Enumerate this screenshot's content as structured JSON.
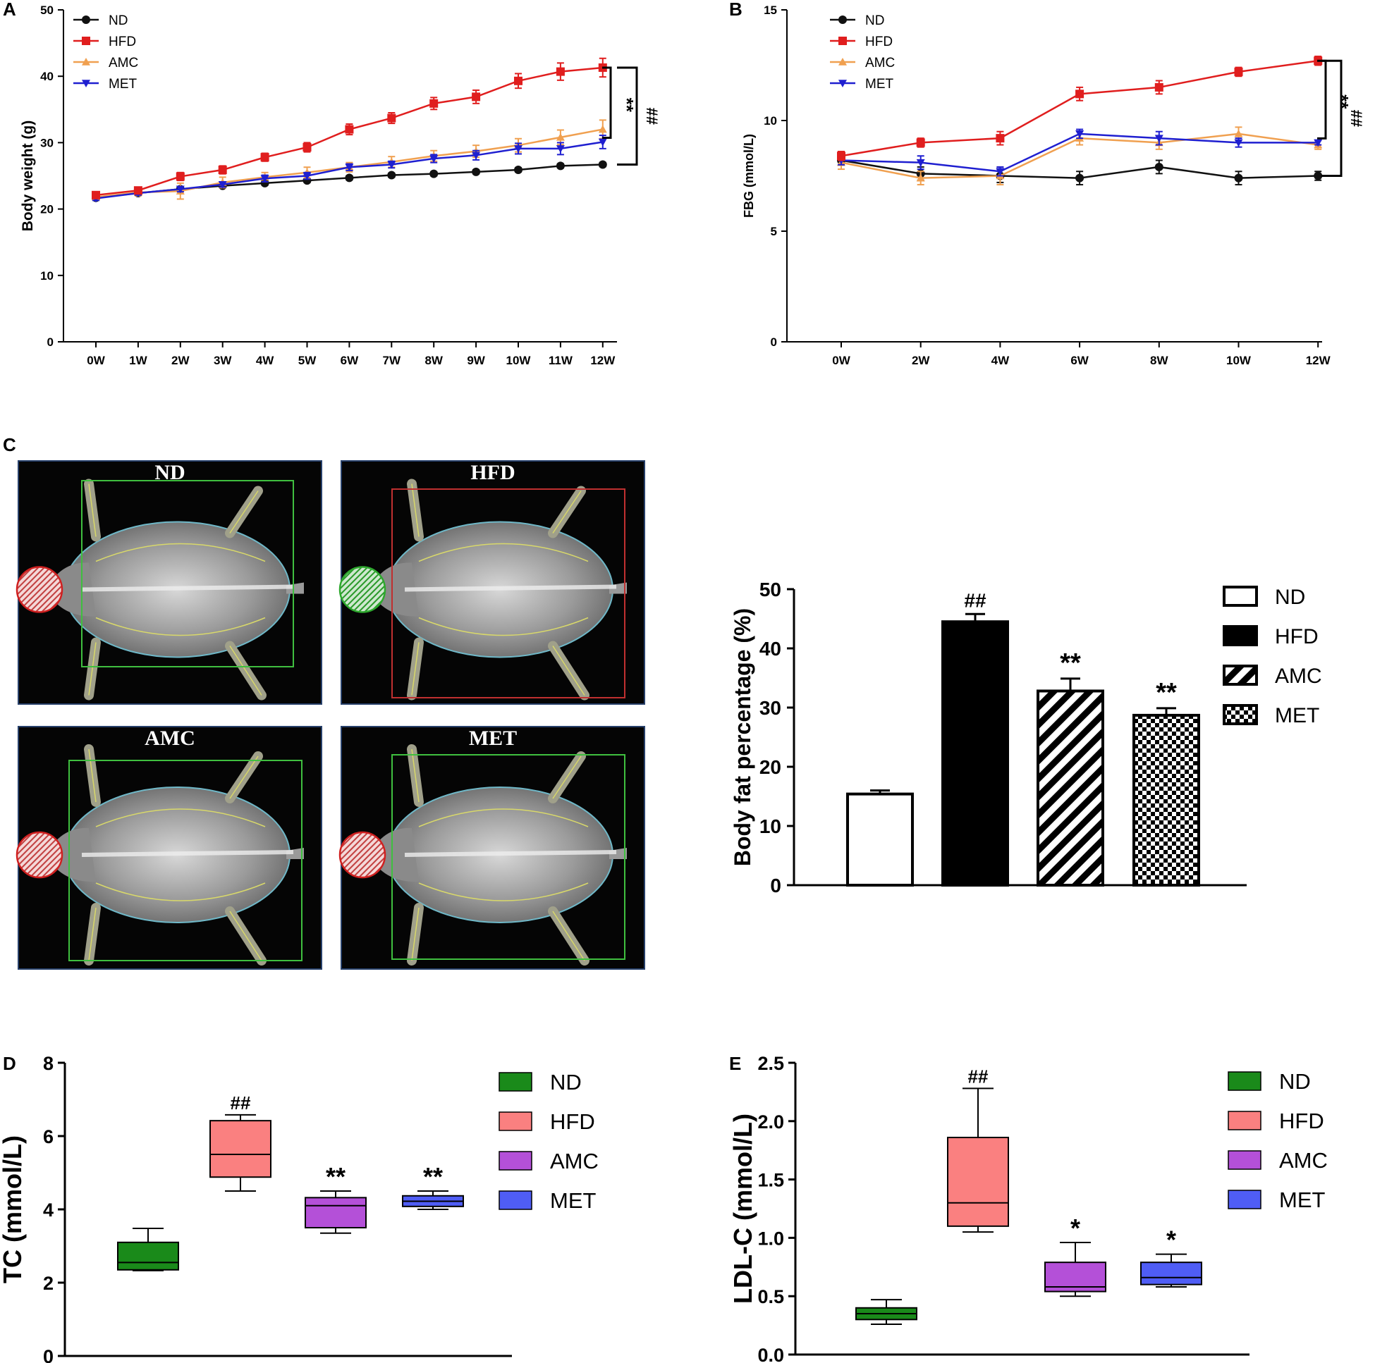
{
  "panel_letters": {
    "A": "A",
    "B": "B",
    "C": "C",
    "D": "D",
    "E": "E"
  },
  "xray_labels": [
    "ND",
    "HFD",
    "AMC",
    "MET"
  ],
  "colors": {
    "ND": "#111111",
    "HFD": "#e01e1e",
    "AMC": "#f0a050",
    "MET": "#1f1fd0",
    "box_ND": "#1a8a1a",
    "box_HFD": "#fa8080",
    "box_AMC": "#b450d8",
    "box_MET": "#4f5df5"
  },
  "chart_data": [
    {
      "id": "A",
      "type": "line",
      "ylabel": "Body weight (g)",
      "xlabel": "",
      "ylim": [
        0,
        50
      ],
      "yticks": [
        0,
        10,
        20,
        30,
        40,
        50
      ],
      "categories": [
        "0W",
        "1W",
        "2W",
        "3W",
        "4W",
        "5W",
        "6W",
        "7W",
        "8W",
        "9W",
        "10W",
        "11W",
        "12W"
      ],
      "series": [
        {
          "name": "ND",
          "values": [
            21.7,
            22.4,
            23.0,
            23.5,
            23.9,
            24.3,
            24.7,
            25.1,
            25.3,
            25.6,
            25.9,
            26.5,
            26.7
          ],
          "err": [
            0.3,
            0.3,
            0.3,
            0.3,
            0.3,
            0.3,
            0.3,
            0.3,
            0.3,
            0.3,
            0.3,
            0.3,
            0.3
          ]
        },
        {
          "name": "HFD",
          "values": [
            22.1,
            22.8,
            24.9,
            25.9,
            27.8,
            29.3,
            32.0,
            33.7,
            35.9,
            36.9,
            39.3,
            40.7,
            41.3
          ],
          "err": [
            0.4,
            0.5,
            0.6,
            0.6,
            0.6,
            0.7,
            0.8,
            0.8,
            0.9,
            1.0,
            1.1,
            1.3,
            1.4
          ]
        },
        {
          "name": "AMC",
          "values": [
            21.8,
            22.5,
            22.7,
            24.0,
            24.8,
            25.5,
            26.3,
            27.1,
            28.0,
            28.7,
            29.6,
            30.8,
            32.0
          ],
          "err": [
            0.4,
            0.5,
            1.2,
            0.8,
            0.7,
            0.8,
            0.7,
            0.8,
            0.8,
            0.9,
            1.0,
            1.1,
            1.4
          ]
        },
        {
          "name": "MET",
          "values": [
            21.6,
            22.4,
            23.0,
            23.7,
            24.6,
            25.0,
            26.3,
            26.7,
            27.6,
            28.1,
            29.1,
            29.1,
            30.1
          ],
          "err": [
            0.3,
            0.3,
            0.4,
            0.4,
            0.5,
            0.5,
            0.5,
            0.5,
            0.6,
            0.7,
            0.8,
            0.9,
            1.0
          ]
        }
      ],
      "legend": [
        "ND",
        "HFD",
        "AMC",
        "MET"
      ],
      "annotations": [
        "**",
        "##"
      ]
    },
    {
      "id": "B",
      "type": "line",
      "ylabel": "FBG (mmol/L)",
      "xlabel": "",
      "ylim": [
        0,
        15
      ],
      "yticks": [
        0,
        5,
        10,
        15
      ],
      "categories": [
        "0W",
        "2W",
        "4W",
        "6W",
        "8W",
        "10W",
        "12W"
      ],
      "series": [
        {
          "name": "ND",
          "values": [
            8.2,
            7.6,
            7.5,
            7.4,
            7.9,
            7.4,
            7.5
          ],
          "err": [
            0.2,
            0.3,
            0.3,
            0.3,
            0.3,
            0.3,
            0.2
          ]
        },
        {
          "name": "HFD",
          "values": [
            8.4,
            9.0,
            9.2,
            11.2,
            11.5,
            12.2,
            12.7
          ],
          "err": [
            0.2,
            0.2,
            0.3,
            0.3,
            0.3,
            0.2,
            0.2
          ]
        },
        {
          "name": "AMC",
          "values": [
            8.1,
            7.4,
            7.5,
            9.2,
            9.0,
            9.4,
            8.9
          ],
          "err": [
            0.3,
            0.3,
            0.4,
            0.3,
            0.3,
            0.3,
            0.2
          ]
        },
        {
          "name": "MET",
          "values": [
            8.2,
            8.1,
            7.7,
            9.4,
            9.2,
            9.0,
            9.0
          ],
          "err": [
            0.2,
            0.3,
            0.2,
            0.2,
            0.3,
            0.2,
            0.1
          ]
        }
      ],
      "legend": [
        "ND",
        "HFD",
        "AMC",
        "MET"
      ],
      "annotations": [
        "**",
        "##"
      ]
    },
    {
      "id": "C",
      "type": "bar",
      "ylabel": "Body fat percentage (%)",
      "xlabel": "",
      "ylim": [
        0,
        50
      ],
      "yticks": [
        0,
        10,
        20,
        30,
        40,
        50
      ],
      "categories": [
        "ND",
        "HFD",
        "AMC",
        "MET"
      ],
      "values": [
        15.4,
        44.5,
        32.8,
        28.7
      ],
      "err": [
        0.6,
        1.3,
        2.1,
        1.2
      ],
      "patterns": [
        "empty",
        "solid",
        "stripes",
        "checker"
      ],
      "annotations": [
        "",
        "##",
        "**",
        "**"
      ],
      "legend": [
        "ND",
        "HFD",
        "AMC",
        "MET"
      ]
    },
    {
      "id": "D",
      "type": "box",
      "ylabel": "TC (mmol/L)",
      "xlabel": "",
      "ylim": [
        0,
        8
      ],
      "yticks": [
        0,
        2,
        4,
        6,
        8
      ],
      "categories": [
        "ND",
        "HFD",
        "AMC",
        "MET"
      ],
      "boxes": [
        {
          "min": 2.33,
          "q1": 2.35,
          "median": 2.55,
          "q3": 3.1,
          "max": 3.48
        },
        {
          "min": 4.5,
          "q1": 4.88,
          "median": 5.5,
          "q3": 6.42,
          "max": 6.58
        },
        {
          "min": 3.35,
          "q1": 3.5,
          "median": 4.1,
          "q3": 4.32,
          "max": 4.5
        },
        {
          "min": 4.0,
          "q1": 4.08,
          "median": 4.22,
          "q3": 4.37,
          "max": 4.5
        }
      ],
      "annotations": [
        "",
        "##",
        "**",
        "**"
      ],
      "legend": [
        "ND",
        "HFD",
        "AMC",
        "MET"
      ]
    },
    {
      "id": "E",
      "type": "box",
      "ylabel": "LDL-C (mmol/L)",
      "xlabel": "",
      "ylim": [
        0,
        2.5
      ],
      "yticks": [
        "0.0",
        "0.5",
        "1.0",
        "1.5",
        "2.0",
        "2.5"
      ],
      "categories": [
        "ND",
        "HFD",
        "AMC",
        "MET"
      ],
      "boxes": [
        {
          "min": 0.26,
          "q1": 0.3,
          "median": 0.35,
          "q3": 0.4,
          "max": 0.47
        },
        {
          "min": 1.05,
          "q1": 1.1,
          "median": 1.3,
          "q3": 1.86,
          "max": 2.28
        },
        {
          "min": 0.5,
          "q1": 0.54,
          "median": 0.58,
          "q3": 0.79,
          "max": 0.96
        },
        {
          "min": 0.58,
          "q1": 0.6,
          "median": 0.66,
          "q3": 0.79,
          "max": 0.86
        }
      ],
      "annotations": [
        "",
        "##",
        "*",
        "*"
      ],
      "legend": [
        "ND",
        "HFD",
        "AMC",
        "MET"
      ]
    }
  ]
}
